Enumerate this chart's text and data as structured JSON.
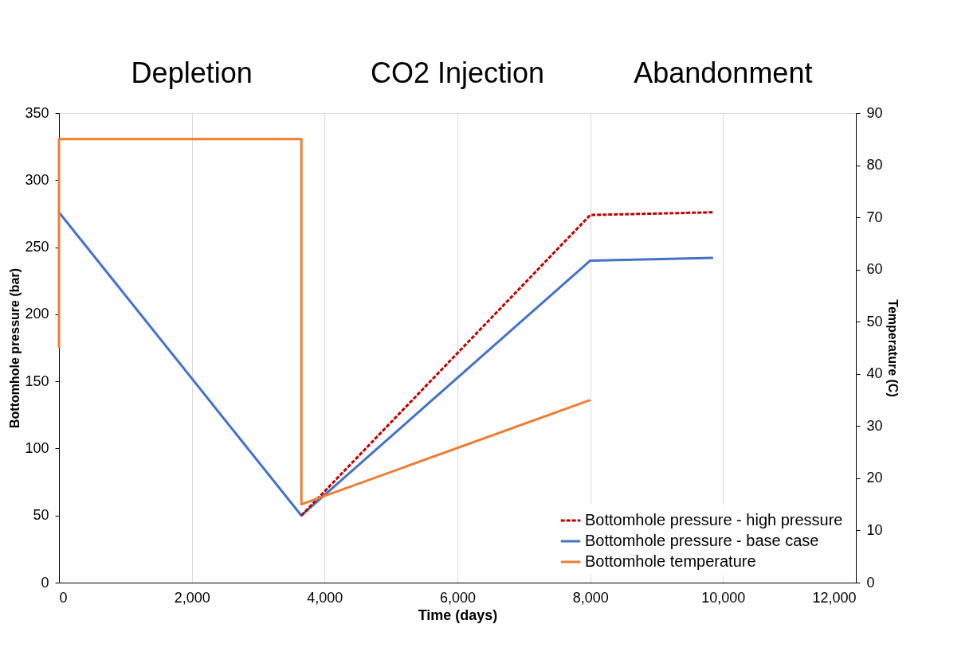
{
  "chart_data": {
    "type": "line",
    "xlabel": "Time (days)",
    "ylabel": "Bottomhole pressure (bar)",
    "y2label": "Temperature (C)",
    "xlim": [
      0,
      12000
    ],
    "xticks": [
      0,
      {
        "value": 2000,
        "label": "2,000"
      },
      {
        "value": 4000,
        "label": "4,000"
      },
      {
        "value": 6000,
        "label": "6,000"
      },
      {
        "value": 8000,
        "label": "8,000"
      },
      {
        "value": 10000,
        "label": "10,000"
      },
      {
        "value": 12000,
        "label": "12,000"
      }
    ],
    "ylim": [
      0,
      350
    ],
    "yticks": [
      0,
      50,
      100,
      150,
      200,
      250,
      300,
      350
    ],
    "y2lim": [
      0,
      90
    ],
    "y2ticks": [
      0,
      10,
      20,
      30,
      40,
      50,
      60,
      70,
      80,
      90
    ],
    "grid": "x",
    "legend": "bottom right",
    "marker": "none",
    "series": [
      {
        "name": "Bottomhole pressure - high pressure",
        "color": "#c00000",
        "line_style": "dashed",
        "x": [
          3650,
          8000,
          9850
        ],
        "values": [
          50,
          274,
          276
        ]
      },
      {
        "name": "Bottomhole pressure - base case",
        "color": "#4472c4",
        "line_style": "solid",
        "x": [
          0,
          3650,
          8000,
          9850
        ],
        "values": [
          276,
          50,
          240,
          242
        ]
      },
      {
        "name": "Bottomhole temperature",
        "color": "#ed7d31",
        "line_style": "solid",
        "axis": "y2",
        "x": [
          0,
          0,
          3650,
          3650,
          8000
        ],
        "values": [
          45,
          85,
          85,
          15,
          35
        ]
      }
    ],
    "annotations": [
      "Depletion",
      "CO2 Injection",
      "Abandonment"
    ]
  }
}
